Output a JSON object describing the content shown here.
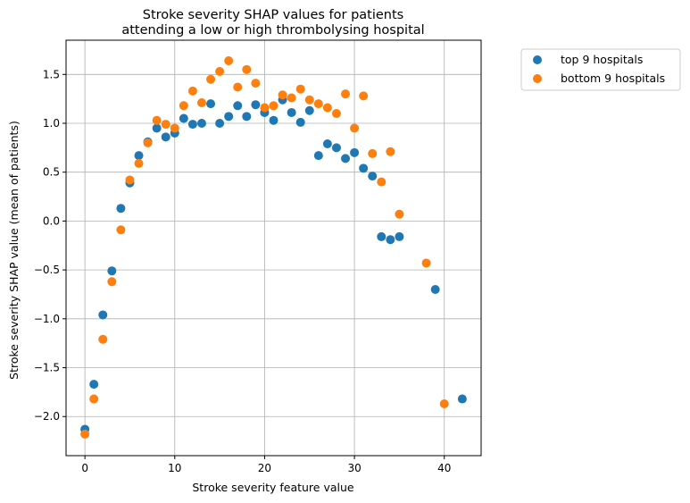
{
  "chart_data": {
    "type": "scatter",
    "title_lines": [
      "Stroke severity SHAP values for patients",
      "attending a low or high thrombolysing hospital"
    ],
    "xlabel": "Stroke severity feature value",
    "ylabel": "Stroke severity SHAP value (mean of patients)",
    "xlim": [
      -2.1,
      44.1
    ],
    "ylim": [
      -2.4,
      1.85
    ],
    "x_ticks": [
      0,
      10,
      20,
      30,
      40
    ],
    "y_ticks": [
      -2.0,
      -1.5,
      -1.0,
      -0.5,
      0.0,
      0.5,
      1.0,
      1.5
    ],
    "x_tick_labels": [
      "0",
      "10",
      "20",
      "30",
      "40"
    ],
    "y_tick_labels": [
      "−2.0",
      "−1.5",
      "−1.0",
      "−0.5",
      "0.0",
      "0.5",
      "1.0",
      "1.5"
    ],
    "grid": true,
    "legend_position": "outside-top-right",
    "series": [
      {
        "name": "top 9 hospitals",
        "color": "#1f77b4",
        "points": [
          [
            0,
            -2.13
          ],
          [
            1,
            -1.67
          ],
          [
            2,
            -0.96
          ],
          [
            3,
            -0.51
          ],
          [
            4,
            0.13
          ],
          [
            5,
            0.39
          ],
          [
            6,
            0.67
          ],
          [
            7,
            0.81
          ],
          [
            8,
            0.95
          ],
          [
            9,
            0.86
          ],
          [
            10,
            0.9
          ],
          [
            11,
            1.05
          ],
          [
            12,
            0.99
          ],
          [
            13,
            1.0
          ],
          [
            14,
            1.2
          ],
          [
            15,
            1.0
          ],
          [
            16,
            1.07
          ],
          [
            17,
            1.18
          ],
          [
            18,
            1.07
          ],
          [
            19,
            1.19
          ],
          [
            20,
            1.11
          ],
          [
            21,
            1.03
          ],
          [
            22,
            1.24
          ],
          [
            23,
            1.11
          ],
          [
            24,
            1.01
          ],
          [
            25,
            1.13
          ],
          [
            26,
            0.67
          ],
          [
            27,
            0.79
          ],
          [
            28,
            0.75
          ],
          [
            29,
            0.64
          ],
          [
            30,
            0.7
          ],
          [
            31,
            0.54
          ],
          [
            32,
            0.46
          ],
          [
            33,
            -0.16
          ],
          [
            34,
            -0.19
          ],
          [
            35,
            -0.16
          ],
          [
            39,
            -0.7
          ],
          [
            42,
            -1.82
          ]
        ]
      },
      {
        "name": "bottom 9 hospitals",
        "color": "#ff7f0e",
        "points": [
          [
            0,
            -2.18
          ],
          [
            1,
            -1.82
          ],
          [
            2,
            -1.21
          ],
          [
            3,
            -0.62
          ],
          [
            4,
            -0.09
          ],
          [
            5,
            0.42
          ],
          [
            6,
            0.59
          ],
          [
            7,
            0.8
          ],
          [
            8,
            1.03
          ],
          [
            9,
            0.99
          ],
          [
            10,
            0.95
          ],
          [
            11,
            1.18
          ],
          [
            12,
            1.33
          ],
          [
            13,
            1.21
          ],
          [
            14,
            1.45
          ],
          [
            15,
            1.53
          ],
          [
            16,
            1.64
          ],
          [
            17,
            1.37
          ],
          [
            18,
            1.55
          ],
          [
            19,
            1.41
          ],
          [
            20,
            1.16
          ],
          [
            21,
            1.18
          ],
          [
            22,
            1.29
          ],
          [
            23,
            1.26
          ],
          [
            24,
            1.35
          ],
          [
            25,
            1.24
          ],
          [
            26,
            1.2
          ],
          [
            27,
            1.16
          ],
          [
            28,
            1.1
          ],
          [
            29,
            1.3
          ],
          [
            30,
            0.95
          ],
          [
            31,
            1.28
          ],
          [
            32,
            0.69
          ],
          [
            33,
            0.4
          ],
          [
            34,
            0.71
          ],
          [
            35,
            0.07
          ],
          [
            38,
            -0.43
          ],
          [
            40,
            -1.87
          ]
        ]
      }
    ]
  }
}
